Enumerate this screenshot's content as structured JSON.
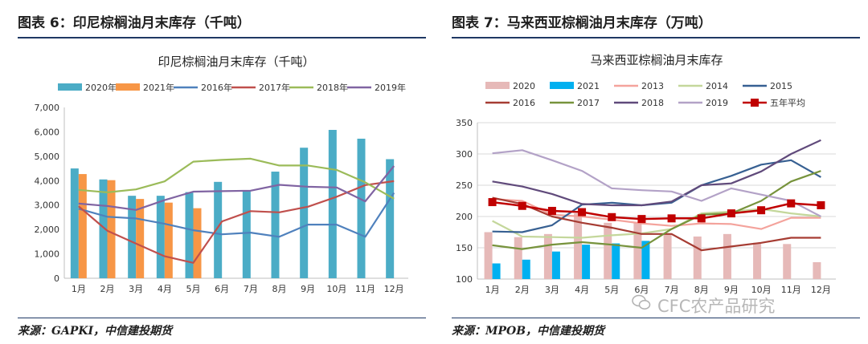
{
  "left": {
    "figure_title": "图表 6：印尼棕榈油月末库存（千吨）",
    "source": "来源：GAPKI，中信建投期货"
  },
  "right": {
    "figure_title": "图表 7：马来西亚棕榈油月末库存（万吨）",
    "source": "来源：MPOB，中信建投期货"
  },
  "watermark": "CFC农产品研究",
  "chart_data": [
    {
      "type": "bar",
      "title": "印尼棕榈油月末库存（千吨）",
      "categories": [
        "1月",
        "2月",
        "3月",
        "4月",
        "5月",
        "6月",
        "7月",
        "8月",
        "9月",
        "10月",
        "11月",
        "12月"
      ],
      "ylim": [
        0,
        7000
      ],
      "yticks": [
        "0",
        "1,000",
        "2,000",
        "3,000",
        "4,000",
        "5,000",
        "6,000",
        "7,000"
      ],
      "ytick_values": [
        0,
        1000,
        2000,
        3000,
        4000,
        5000,
        6000,
        7000
      ],
      "grid": false,
      "legend_position": "top",
      "bar_series": [
        {
          "name": "2020年",
          "color": "#4bacc6",
          "values": [
            4500,
            4050,
            3380,
            3380,
            3530,
            3950,
            3600,
            4370,
            5350,
            6080,
            5720,
            4880
          ]
        },
        {
          "name": "2021年",
          "color": "#f79646",
          "values": [
            4270,
            4020,
            3250,
            3100,
            2870,
            null,
            null,
            null,
            null,
            null,
            null,
            null
          ]
        }
      ],
      "line_series": [
        {
          "name": "2016年",
          "color": "#4f81bd",
          "values": [
            2850,
            2520,
            2450,
            2230,
            1970,
            1800,
            1870,
            1700,
            2200,
            2200,
            1700,
            3500
          ]
        },
        {
          "name": "2017年",
          "color": "#c0504d",
          "values": [
            2950,
            1950,
            1420,
            900,
            630,
            2330,
            2750,
            2700,
            2930,
            3340,
            3820,
            3980
          ]
        },
        {
          "name": "2018年",
          "color": "#9bbb59",
          "values": [
            3620,
            3520,
            3640,
            3970,
            4780,
            4850,
            4900,
            4620,
            4620,
            4440,
            3930,
            3260
          ]
        },
        {
          "name": "2019年",
          "color": "#8064a2",
          "values": [
            3060,
            2960,
            2800,
            3200,
            3550,
            3570,
            3590,
            3830,
            3750,
            3720,
            3150,
            4600
          ]
        }
      ]
    },
    {
      "type": "bar",
      "title": "马来西亚棕榈油月末库存",
      "categories": [
        "1月",
        "2月",
        "3月",
        "4月",
        "5月",
        "6月",
        "7月",
        "8月",
        "9月",
        "10月",
        "11月",
        "12月"
      ],
      "ylim": [
        100,
        350
      ],
      "yticks": [
        "100",
        "150",
        "200",
        "250",
        "300",
        "350"
      ],
      "ytick_values": [
        100,
        150,
        200,
        250,
        300,
        350
      ],
      "grid": true,
      "legend_position": "top",
      "bar_series": [
        {
          "name": "2020",
          "color": "#e6b9b8",
          "values": [
            175,
            167,
            172,
            205,
            190,
            190,
            172,
            168,
            172,
            158,
            156,
            127
          ]
        },
        {
          "name": "2021",
          "color": "#00b0f0",
          "values": [
            125,
            131,
            144,
            155,
            157,
            161,
            null,
            null,
            null,
            null,
            null,
            null
          ]
        }
      ],
      "line_series": [
        {
          "name": "2013",
          "color": "#f4a39c",
          "values": [
            228,
            225,
            203,
            200,
            195,
            189,
            185,
            189,
            188,
            180,
            198,
            198
          ]
        },
        {
          "name": "2014",
          "color": "#c4d79b",
          "values": [
            193,
            168,
            167,
            166,
            170,
            173,
            180,
            205,
            208,
            212,
            205,
            200
          ]
        },
        {
          "name": "2015",
          "color": "#376092",
          "values": [
            176,
            175,
            186,
            219,
            222,
            218,
            222,
            250,
            265,
            283,
            290,
            263
          ]
        },
        {
          "name": "2016",
          "color": "#a63c33",
          "values": [
            230,
            220,
            200,
            190,
            182,
            172,
            172,
            146,
            152,
            158,
            166,
            166
          ]
        },
        {
          "name": "2017",
          "color": "#77933c",
          "values": [
            154,
            148,
            155,
            159,
            155,
            150,
            180,
            203,
            205,
            225,
            256,
            273
          ]
        },
        {
          "name": "2018",
          "color": "#604a7b",
          "values": [
            256,
            248,
            236,
            220,
            218,
            218,
            224,
            250,
            253,
            272,
            300,
            322
          ]
        },
        {
          "name": "2019",
          "color": "#b3a2c7",
          "values": [
            301,
            306,
            290,
            273,
            245,
            242,
            240,
            225,
            245,
            235,
            225,
            200
          ]
        },
        {
          "name": "五年平均",
          "color": "#c00000",
          "marker": "square",
          "values": [
            223,
            217,
            209,
            207,
            199,
            196,
            197,
            197,
            205,
            210,
            221,
            218
          ]
        }
      ]
    }
  ]
}
